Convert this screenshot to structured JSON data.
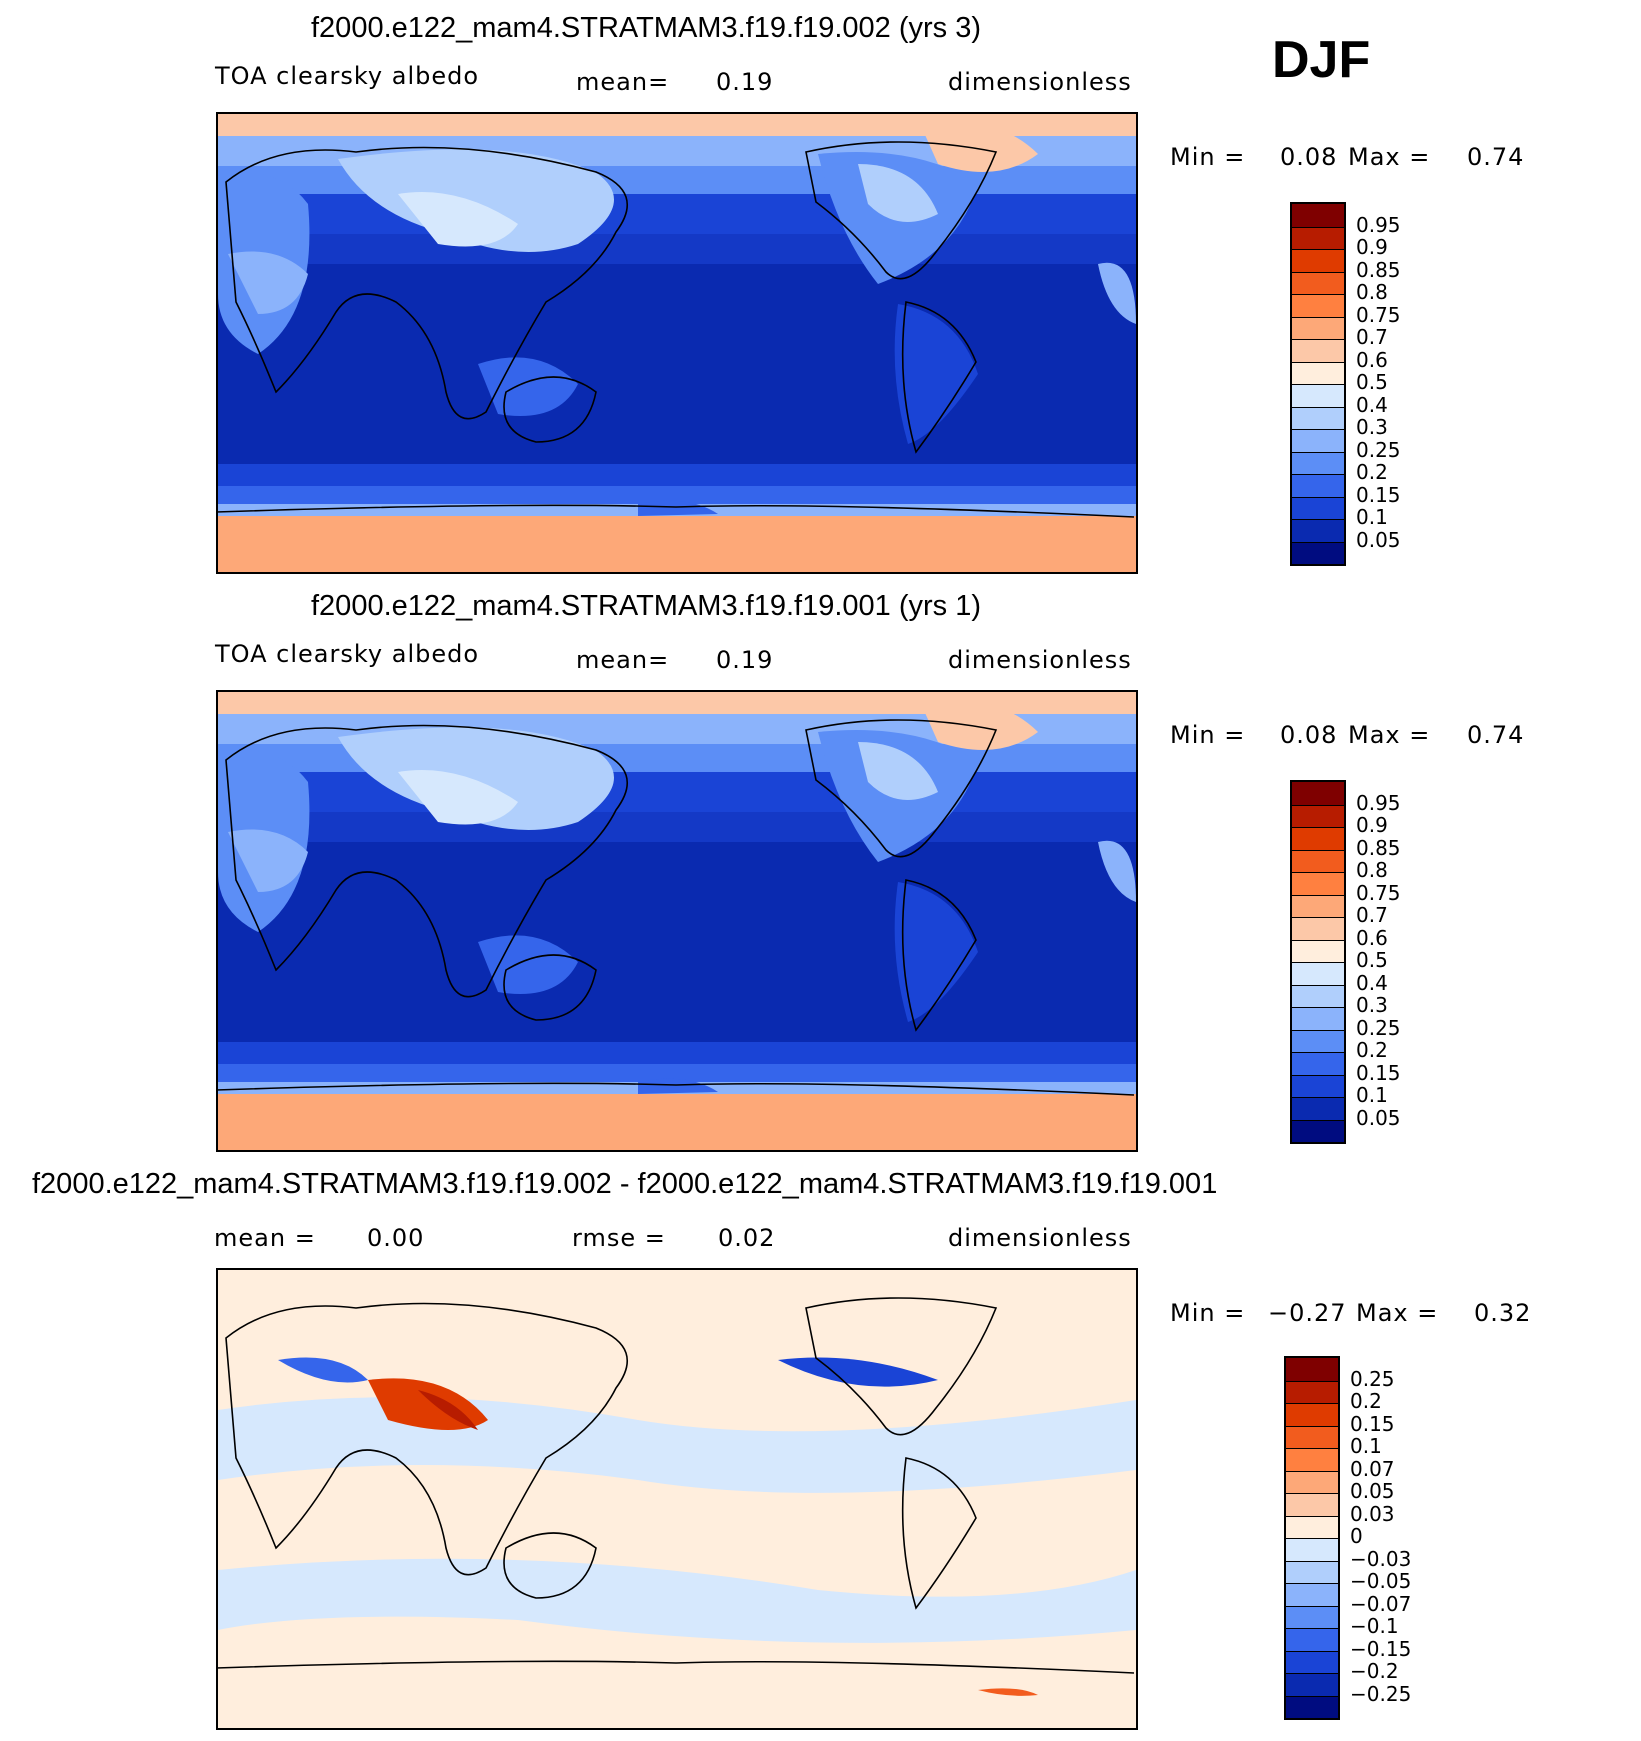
{
  "season": "DJF",
  "panels": [
    {
      "title": "f2000.e122_mam4.STRATMAM3.f19.f19.002 (yrs 3)",
      "variable": "TOA clearsky albedo",
      "mean_label": "mean=",
      "mean_value": "0.19",
      "units": "dimensionless",
      "min_label": "Min =",
      "min_value": "0.08",
      "max_label": "Max =",
      "max_value": "0.74",
      "colorbar": {
        "labels": [
          "0.95",
          "0.9",
          "0.85",
          "0.8",
          "0.75",
          "0.7",
          "0.6",
          "0.5",
          "0.4",
          "0.3",
          "0.25",
          "0.2",
          "0.15",
          "0.1",
          "0.05"
        ],
        "colors": [
          "#7f0000",
          "#b71c00",
          "#df3b00",
          "#f25c1e",
          "#ff8040",
          "#fda878",
          "#fcc8a8",
          "#ffeedd",
          "#d6e8fd",
          "#b0cffc",
          "#8bb3fb",
          "#5c8ef6",
          "#3565eb",
          "#1a44d6",
          "#0a2ab0",
          "#000c80"
        ]
      }
    },
    {
      "title": "f2000.e122_mam4.STRATMAM3.f19.f19.001 (yrs 1)",
      "variable": "TOA clearsky albedo",
      "mean_label": "mean=",
      "mean_value": "0.19",
      "units": "dimensionless",
      "min_label": "Min =",
      "min_value": "0.08",
      "max_label": "Max =",
      "max_value": "0.74",
      "colorbar": {
        "labels": [
          "0.95",
          "0.9",
          "0.85",
          "0.8",
          "0.75",
          "0.7",
          "0.6",
          "0.5",
          "0.4",
          "0.3",
          "0.25",
          "0.2",
          "0.15",
          "0.1",
          "0.05"
        ],
        "colors": [
          "#7f0000",
          "#b71c00",
          "#df3b00",
          "#f25c1e",
          "#ff8040",
          "#fda878",
          "#fcc8a8",
          "#ffeedd",
          "#d6e8fd",
          "#b0cffc",
          "#8bb3fb",
          "#5c8ef6",
          "#3565eb",
          "#1a44d6",
          "#0a2ab0",
          "#000c80"
        ]
      }
    },
    {
      "title": "f2000.e122_mam4.STRATMAM3.f19.f19.002 - f2000.e122_mam4.STRATMAM3.f19.f19.001",
      "mean_label": "mean =",
      "mean_value": "0.00",
      "rmse_label": "rmse =",
      "rmse_value": "0.02",
      "units": "dimensionless",
      "min_label": "Min =",
      "min_value": "−0.27",
      "max_label": "Max =",
      "max_value": "0.32",
      "colorbar": {
        "labels": [
          "0.25",
          "0.2",
          "0.15",
          "0.1",
          "0.07",
          "0.05",
          "0.03",
          "0",
          "−0.03",
          "−0.05",
          "−0.07",
          "−0.1",
          "−0.15",
          "−0.2",
          "−0.25"
        ],
        "colors": [
          "#7f0000",
          "#b71c00",
          "#df3b00",
          "#f25c1e",
          "#ff8040",
          "#fda878",
          "#fcc8a8",
          "#ffeedd",
          "#d6e8fd",
          "#b0cffc",
          "#8bb3fb",
          "#5c8ef6",
          "#3565eb",
          "#1a44d6",
          "#0a2ab0",
          "#000c80"
        ]
      }
    }
  ]
}
